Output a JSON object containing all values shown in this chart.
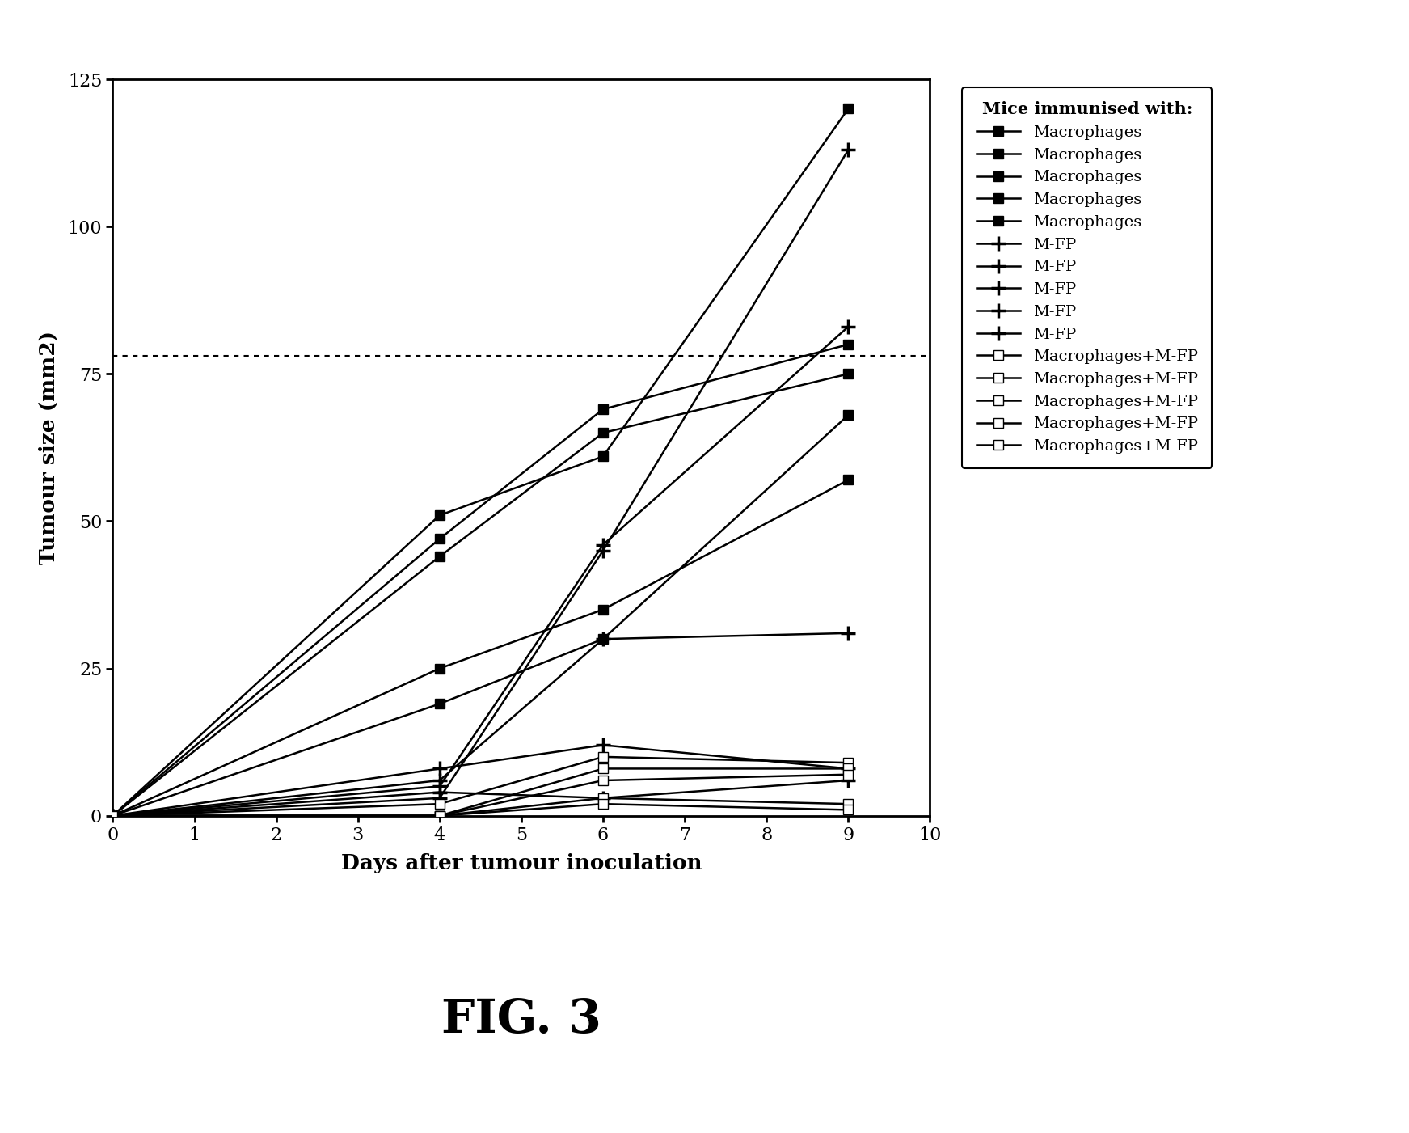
{
  "title": "FIG. 3",
  "ylabel": "Tumour size (mm2)",
  "xlabel": "Days after tumour inoculation",
  "legend_title": "Mice immunised with:",
  "xlim": [
    0,
    10
  ],
  "ylim": [
    0,
    125
  ],
  "xticks": [
    0,
    1,
    2,
    3,
    4,
    5,
    6,
    7,
    8,
    9,
    10
  ],
  "yticks": [
    0,
    25,
    50,
    75,
    100,
    125
  ],
  "hline_y": 78,
  "days": [
    0,
    4,
    6,
    9
  ],
  "macrophages_data": [
    [
      0,
      51,
      61,
      120
    ],
    [
      0,
      47,
      69,
      80
    ],
    [
      0,
      44,
      65,
      75
    ],
    [
      0,
      25,
      35,
      57
    ],
    [
      0,
      19,
      30,
      68
    ]
  ],
  "mfp_data": [
    [
      0,
      3,
      45,
      113
    ],
    [
      0,
      5,
      46,
      83
    ],
    [
      0,
      6,
      30,
      31
    ],
    [
      0,
      8,
      12,
      8
    ],
    [
      0,
      4,
      3,
      6
    ]
  ],
  "combo_data": [
    [
      0,
      2,
      10,
      9
    ],
    [
      0,
      0,
      8,
      8
    ],
    [
      0,
      0,
      6,
      7
    ],
    [
      0,
      0,
      3,
      2
    ],
    [
      0,
      0,
      2,
      1
    ]
  ],
  "background_color": "#ffffff"
}
